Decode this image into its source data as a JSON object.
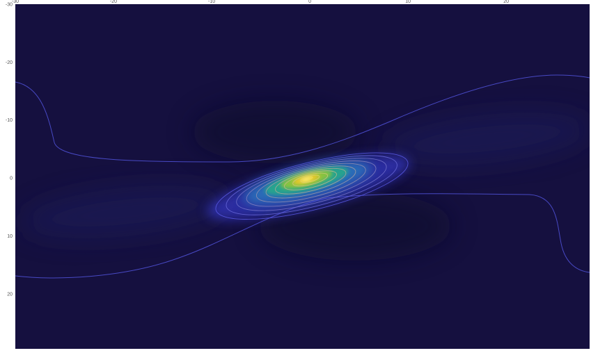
{
  "chart_data": {
    "type": "heatmap",
    "title": "",
    "xlabel": "",
    "ylabel": "",
    "xlim": [
      -30,
      28.5
    ],
    "ylim": [
      -30,
      29.5
    ],
    "y_axis_inverted": true,
    "x_axis_position": "top",
    "grid": false,
    "legend": "none",
    "x_ticks": [
      -30,
      -20,
      -10,
      0,
      10,
      20
    ],
    "y_ticks": [
      -30,
      -20,
      -10,
      0,
      10,
      20
    ],
    "x_tick_labels": [
      "-30",
      "-20",
      "-10",
      "0",
      "10",
      "20"
    ],
    "y_tick_labels": [
      "-30",
      "-20",
      "-10",
      "0",
      "10",
      "20"
    ],
    "peak": {
      "x": 0,
      "y": 0
    },
    "colormap": [
      "#15103f",
      "#2c2fa8",
      "#1f7ea6",
      "#25a783",
      "#8cc43d",
      "#d7c421",
      "#ffe44a"
    ],
    "background_color": "#15103f",
    "contour_color_low": "#5a5be8",
    "contour_color_high": "#f0e060"
  }
}
